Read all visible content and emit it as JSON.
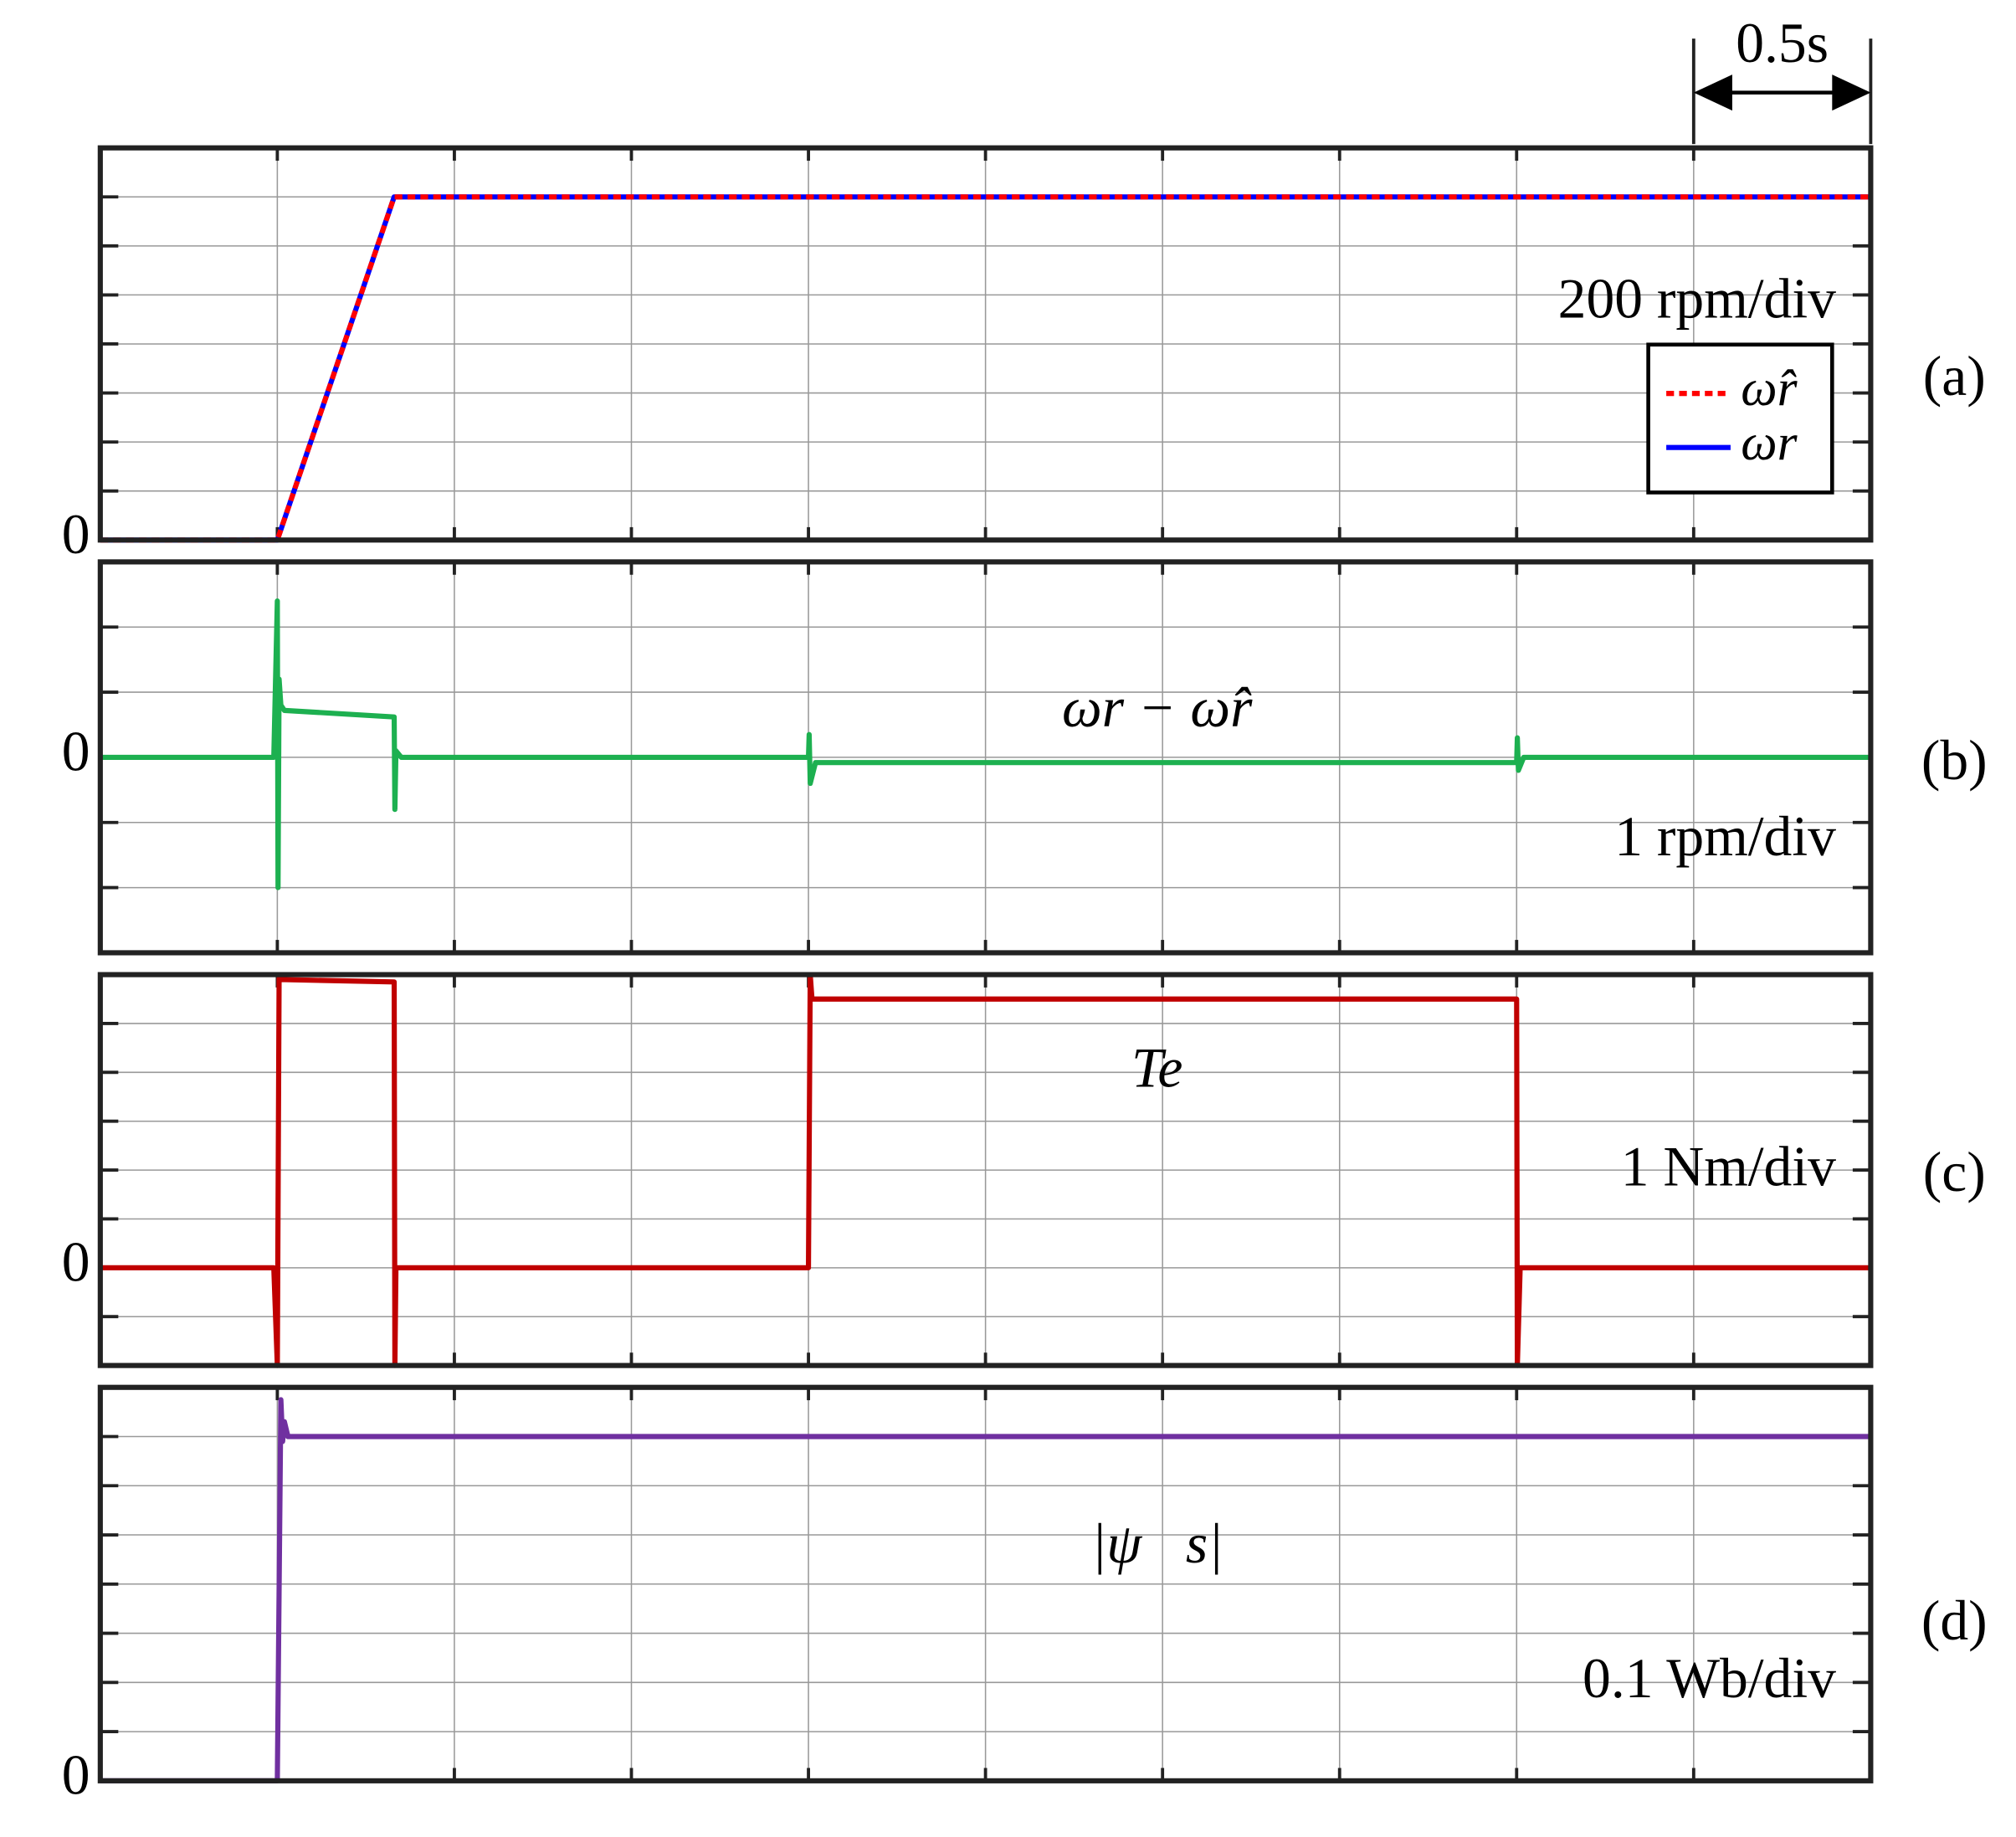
{
  "chart_data": [
    {
      "type": "line",
      "panel_label": "(a)",
      "unit_label": "200 rpm/div",
      "scale_bar": {
        "value": 0.5,
        "label": "0.5s"
      },
      "x": [
        0,
        0.5,
        0.83,
        5
      ],
      "series": [
        {
          "name": "ω̂r",
          "color": "#ff0000",
          "dashed": true,
          "values": [
            0,
            0,
            1400,
            1400
          ]
        },
        {
          "name": "ωr",
          "color": "#0000ff",
          "dashed": false,
          "values": [
            0,
            0,
            1400,
            1400
          ]
        }
      ],
      "xlim": [
        0,
        5
      ],
      "xgrid": [
        0,
        0.5,
        1,
        1.5,
        2,
        2.5,
        3,
        3.5,
        4,
        4.5,
        5
      ],
      "ylim": [
        0,
        1600
      ],
      "yticks": [
        0
      ],
      "ygrid": [
        0,
        200,
        400,
        600,
        800,
        1000,
        1200,
        1400,
        1600
      ],
      "legend": true
    },
    {
      "type": "line",
      "panel_label": "(b)",
      "unit_label": "1 rpm/div",
      "annotation": "ωr − ω̂r",
      "x": [
        0,
        0.49,
        0.5,
        0.502,
        0.505,
        0.51,
        0.52,
        0.83,
        0.832,
        0.835,
        0.85,
        2.0,
        2.002,
        2.005,
        2.02,
        4.0,
        4.002,
        4.005,
        4.02,
        5
      ],
      "series": [
        {
          "color": "#1db050",
          "values": [
            0,
            0,
            2.4,
            -2,
            1.2,
            0.8,
            0.72,
            0.62,
            -0.8,
            0.1,
            0,
            0,
            0.35,
            -0.4,
            -0.08,
            -0.08,
            0.3,
            -0.2,
            0,
            0
          ]
        }
      ],
      "xlim": [
        0,
        5
      ],
      "xgrid": [
        0,
        0.5,
        1,
        1.5,
        2,
        2.5,
        3,
        3.5,
        4,
        4.5,
        5
      ],
      "ylim": [
        -3,
        3
      ],
      "yticks": [
        0
      ],
      "ygrid": [
        -3,
        -2,
        -1,
        0,
        1,
        2,
        3
      ]
    },
    {
      "type": "line",
      "panel_label": "(c)",
      "unit_label": "1 Nm/div",
      "annotation": "Te",
      "x": [
        0,
        0.49,
        0.5,
        0.505,
        0.51,
        0.83,
        0.832,
        0.835,
        0.84,
        2.0,
        2.005,
        2.01,
        2.02,
        4.0,
        4.002,
        4.01,
        5
      ],
      "series": [
        {
          "color": "#c00000",
          "values": [
            0,
            0,
            -2,
            5.92,
            5.9,
            5.85,
            -2,
            0,
            0,
            0,
            6,
            5.5,
            5.5,
            5.5,
            -2,
            0,
            0
          ]
        }
      ],
      "xlim": [
        0,
        5
      ],
      "xgrid": [
        0,
        0.5,
        1,
        1.5,
        2,
        2.5,
        3,
        3.5,
        4,
        4.5,
        5
      ],
      "ylim": [
        -2,
        6
      ],
      "yticks": [
        0
      ],
      "ygrid": [
        -2,
        -1,
        0,
        1,
        2,
        3,
        4,
        5,
        6
      ]
    },
    {
      "type": "line",
      "panel_label": "(d)",
      "unit_label": "0.1 Wb/div",
      "annotation": "|ψ⃗s|",
      "x": [
        0,
        0.5,
        0.51,
        0.515,
        0.52,
        0.53,
        0.55,
        5
      ],
      "series": [
        {
          "color": "#7030a0",
          "values": [
            0,
            0,
            0.775,
            0.69,
            0.73,
            0.7,
            0.7,
            0.7
          ]
        }
      ],
      "xlim": [
        0,
        5
      ],
      "xgrid": [
        0,
        0.5,
        1,
        1.5,
        2,
        2.5,
        3,
        3.5,
        4,
        4.5,
        5
      ],
      "ylim": [
        0,
        0.8
      ],
      "yticks": [
        0
      ],
      "ygrid": [
        0,
        0.1,
        0.2,
        0.3,
        0.4,
        0.5,
        0.6,
        0.7,
        0.8
      ]
    }
  ]
}
